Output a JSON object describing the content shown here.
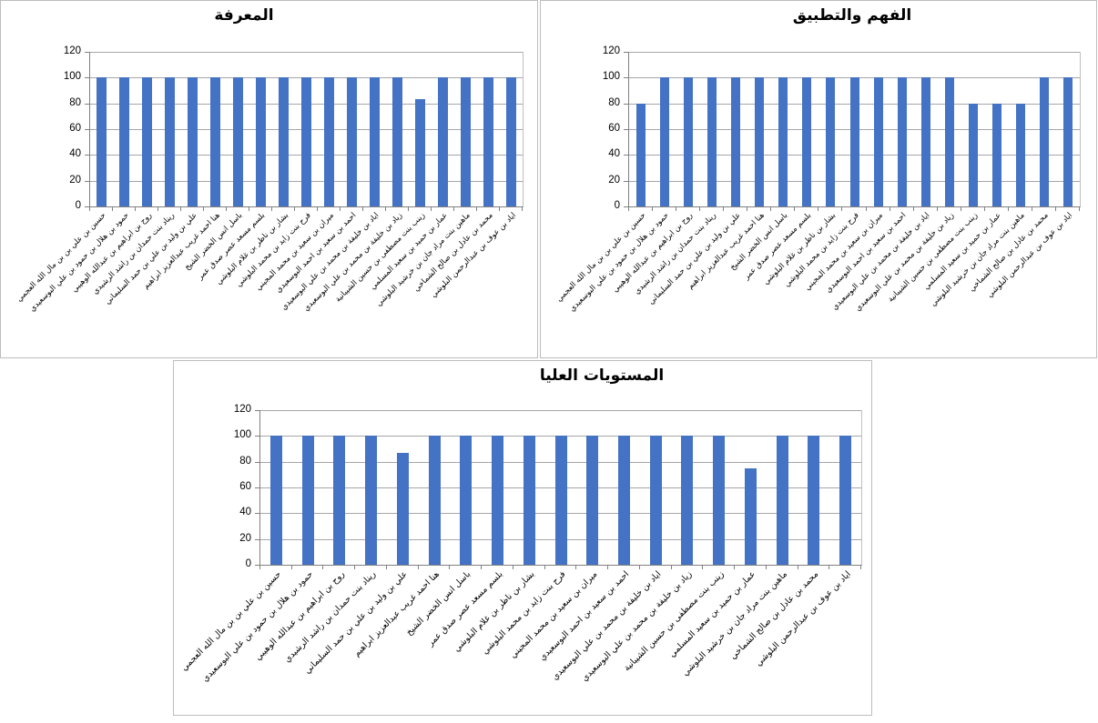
{
  "colors": {
    "bar": "#4472C4",
    "gridline": "#a6a6a6",
    "axis": "#808080",
    "chart_border": "#bdbdbd",
    "text": "#000000",
    "background": "#ffffff"
  },
  "categories": [
    "حسين بن علي بن بن مال الله العجمي",
    "حمود بن هلال بن حمود بن علي البوسعيدي",
    "روح بن ابراهيم بن عبدالله الوهيبي",
    "ريناد بنت حمدان بن راشد الرشيدي",
    "علي بن وليد بن علي بن حمد السليماني",
    "هنا احمد غريب عبدالعزيز ابراهيم",
    "باسل انس الخضر الشيخ",
    "بلسم مسعد عصر صدق عمر",
    "بشار بن ناظر بن غلام البلوشي",
    "فرح بنت زايد بن محمد البلوشي",
    "ميران بن سعيد بن محمد المجيني",
    "احمد بن سعيد بن احمد البوسعيدي",
    "اياد بن خليفة بن محمد بن علي البوسعيدي",
    "زياد بن خليفة بن محمد بن علي البوسعيدي",
    "زينب بنت مصطفى بن حسين الشيبانية",
    "عمار بن حميد بن سعيد المسلمي",
    "ماهين بنت مراد جان بن خرشيد البلوشي",
    "محمد بن عادل بن صالح الشماخي",
    "اياد بن عوف بن عبدالرحمن البلوشي"
  ],
  "chart_data": [
    {
      "type": "bar",
      "title": "المعرفة",
      "xlabel": "",
      "ylabel": "",
      "ylim": [
        0,
        120
      ],
      "yticks": [
        0,
        20,
        40,
        60,
        80,
        100,
        120
      ],
      "grid": true,
      "legend": "none",
      "bar_color": "#4472C4",
      "categories": [
        "حسين بن علي بن بن مال الله العجمي",
        "حمود بن هلال بن حمود بن علي البوسعيدي",
        "روح بن ابراهيم بن عبدالله الوهيبي",
        "ريناد بنت حمدان بن راشد الرشيدي",
        "علي بن وليد بن علي بن حمد السليماني",
        "هنا احمد غريب عبدالعزيز ابراهيم",
        "باسل انس الخضر الشيخ",
        "بلسم مسعد عصر صدق عمر",
        "بشار بن ناظر بن غلام البلوشي",
        "فرح بنت زايد بن محمد البلوشي",
        "ميران بن سعيد بن محمد المجيني",
        "احمد بن سعيد بن احمد البوسعيدي",
        "اياد بن خليفة بن محمد بن علي البوسعيدي",
        "زياد بن خليفة بن محمد بن علي البوسعيدي",
        "زينب بنت مصطفى بن حسين الشيبانية",
        "عمار بن حميد بن سعيد المسلمي",
        "ماهين بنت مراد جان بن خرشيد البلوشي",
        "محمد بن عادل بن صالح الشماخي",
        "اياد بن عوف بن عبدالرحمن البلوشي"
      ],
      "values": [
        100,
        100,
        100,
        100,
        100,
        100,
        100,
        100,
        100,
        100,
        100,
        100,
        100,
        100,
        83,
        100,
        100,
        100,
        100
      ]
    },
    {
      "type": "bar",
      "title": "الفهم والتطبيق",
      "xlabel": "",
      "ylabel": "",
      "ylim": [
        0,
        120
      ],
      "yticks": [
        0,
        20,
        40,
        60,
        80,
        100,
        120
      ],
      "grid": true,
      "legend": "none",
      "bar_color": "#4472C4",
      "categories": [
        "حسين بن علي بن بن مال الله العجمي",
        "حمود بن هلال بن حمود بن علي البوسعيدي",
        "روح بن ابراهيم بن عبدالله الوهيبي",
        "ريناد بنت حمدان بن راشد الرشيدي",
        "علي بن وليد بن علي بن حمد السليماني",
        "هنا احمد غريب عبدالعزيز ابراهيم",
        "باسل انس الخضر الشيخ",
        "بلسم مسعد عصر صدق عمر",
        "بشار بن ناظر بن غلام البلوشي",
        "فرح بنت زايد بن محمد البلوشي",
        "ميران بن سعيد بن محمد المجيني",
        "احمد بن سعيد بن احمد البوسعيدي",
        "اياد بن خليفة بن محمد بن علي البوسعيدي",
        "زياد بن خليفة بن محمد بن علي البوسعيدي",
        "زينب بنت مصطفى بن حسين الشيبانية",
        "عمار بن حميد بن سعيد المسلمي",
        "ماهين بنت مراد جان بن خرشيد البلوشي",
        "محمد بن عادل بن صالح الشماخي",
        "اياد بن عوف بن عبدالرحمن البلوشي"
      ],
      "values": [
        80,
        100,
        100,
        100,
        100,
        100,
        100,
        100,
        100,
        100,
        100,
        100,
        100,
        100,
        80,
        80,
        80,
        100,
        100
      ]
    },
    {
      "type": "bar",
      "title": "المستويات العليا",
      "xlabel": "",
      "ylabel": "",
      "ylim": [
        0,
        120
      ],
      "yticks": [
        0,
        20,
        40,
        60,
        80,
        100,
        120
      ],
      "grid": true,
      "legend": "none",
      "bar_color": "#4472C4",
      "categories": [
        "حسين بن علي بن بن مال الله العجمي",
        "حمود بن هلال بن حمود بن علي البوسعيدي",
        "روح بن ابراهيم بن عبدالله الوهيبي",
        "ريناد بنت حمدان بن راشد الرشيدي",
        "علي بن وليد بن علي بن حمد السليماني",
        "هنا احمد غريب عبدالعزيز ابراهيم",
        "باسل انس الخضر الشيخ",
        "بلسم مسعد عصر صدق عمر",
        "بشار بن ناظر بن غلام البلوشي",
        "فرح بنت زايد بن محمد البلوشي",
        "ميران بن سعيد بن محمد المجيني",
        "احمد بن سعيد بن احمد البوسعيدي",
        "اياد بن خليفة بن محمد بن علي البوسعيدي",
        "زياد بن خليفة بن محمد بن علي البوسعيدي",
        "زينب بنت مصطفى بن حسين الشيبانية",
        "عمار بن حميد بن سعيد المسلمي",
        "ماهين بنت مراد جان بن خرشيد البلوشي",
        "محمد بن عادل بن صالح الشماخي",
        "اياد بن عوف بن عبدالرحمن البلوشي"
      ],
      "values": [
        100,
        100,
        100,
        100,
        87,
        100,
        100,
        100,
        100,
        100,
        100,
        100,
        100,
        100,
        100,
        75,
        100,
        100,
        100
      ]
    }
  ]
}
